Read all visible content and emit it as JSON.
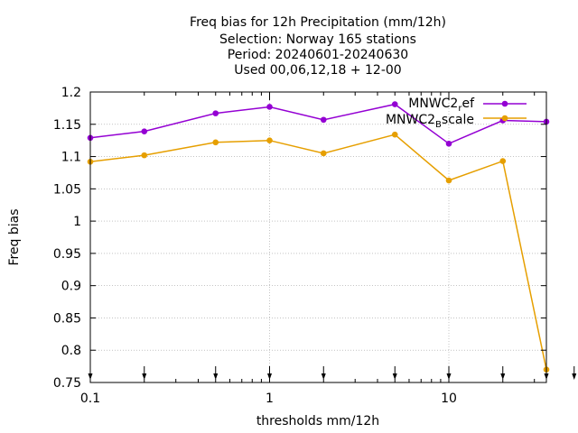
{
  "chart_data": {
    "type": "line",
    "title_lines": [
      "Freq bias  for 12h Precipitation (mm/12h)",
      "Selection: Norway    165 stations",
      "Period: 20240601-20240630",
      "Used 00,06,12,18 + 12-00"
    ],
    "xlabel": "thresholds mm/12h",
    "ylabel": "Freq bias",
    "x_scale": "log",
    "xlim": [
      0.1,
      35
    ],
    "ylim": [
      0.75,
      1.2
    ],
    "x_ticks": [
      {
        "value": 0.1,
        "label": "0.1"
      },
      {
        "value": 1,
        "label": "1"
      },
      {
        "value": 10,
        "label": "10"
      }
    ],
    "y_ticks": [
      {
        "value": 0.75,
        "label": "0.75"
      },
      {
        "value": 0.8,
        "label": "0.8"
      },
      {
        "value": 0.85,
        "label": "0.85"
      },
      {
        "value": 0.9,
        "label": "0.9"
      },
      {
        "value": 0.95,
        "label": "0.95"
      },
      {
        "value": 1.0,
        "label": "1"
      },
      {
        "value": 1.05,
        "label": "1.05"
      },
      {
        "value": 1.1,
        "label": "1.1"
      },
      {
        "value": 1.15,
        "label": "1.15"
      },
      {
        "value": 1.2,
        "label": "1.2"
      }
    ],
    "grid": true,
    "legend_position": "top-right",
    "arrow_thresholds": [
      0.1,
      0.2,
      0.5,
      1,
      2,
      5,
      10,
      20,
      35,
      50
    ],
    "series": [
      {
        "name_main": "MNWC2",
        "name_sub": "r",
        "name_tail": "ef",
        "color": "#9400d3",
        "x": [
          0.1,
          0.2,
          0.5,
          1,
          2,
          5,
          10,
          20,
          35
        ],
        "values": [
          1.129,
          1.139,
          1.167,
          1.177,
          1.157,
          1.181,
          1.12,
          1.156,
          1.154
        ]
      },
      {
        "name_main": "MNWC2",
        "name_sub": "B",
        "name_tail": "scale",
        "color": "#e69f00",
        "x": [
          0.1,
          0.2,
          0.5,
          1,
          2,
          5,
          10,
          20,
          35
        ],
        "values": [
          1.092,
          1.102,
          1.122,
          1.125,
          1.105,
          1.134,
          1.063,
          1.093,
          0.77
        ]
      }
    ]
  }
}
